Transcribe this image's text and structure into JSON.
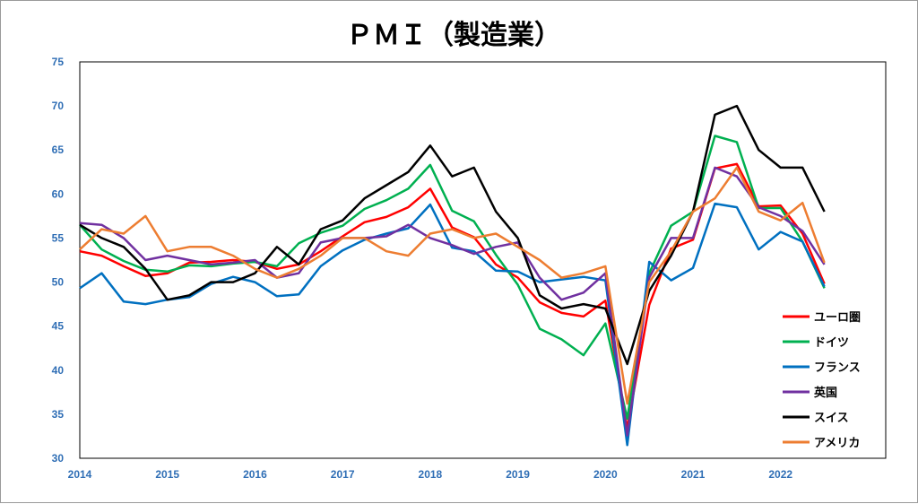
{
  "chart_data": {
    "type": "line",
    "title": "ＰＭＩ（製造業）",
    "xlabel": "",
    "ylabel": "",
    "ylim": [
      30,
      75
    ],
    "yticks": [
      30,
      35,
      40,
      45,
      50,
      55,
      60,
      65,
      70,
      75
    ],
    "xlim": [
      2014,
      2023.2
    ],
    "xticks": [
      "2014",
      "2015",
      "2016",
      "2017",
      "2018",
      "2019",
      "2020",
      "2021",
      "2022"
    ],
    "grid": false,
    "legend_position": "bottom-right",
    "series": [
      {
        "name": "ユーロ圏",
        "color": "#ff0000",
        "points": [
          [
            2014.0,
            53.5
          ],
          [
            2014.25,
            53.0
          ],
          [
            2014.5,
            51.8
          ],
          [
            2014.75,
            50.7
          ],
          [
            2015.0,
            51.0
          ],
          [
            2015.25,
            52.2
          ],
          [
            2015.5,
            52.3
          ],
          [
            2015.75,
            52.5
          ],
          [
            2016.0,
            52.3
          ],
          [
            2016.25,
            51.5
          ],
          [
            2016.5,
            52.0
          ],
          [
            2016.75,
            53.5
          ],
          [
            2017.0,
            55.2
          ],
          [
            2017.25,
            56.8
          ],
          [
            2017.5,
            57.4
          ],
          [
            2017.75,
            58.5
          ],
          [
            2018.0,
            60.6
          ],
          [
            2018.25,
            56.2
          ],
          [
            2018.5,
            55.1
          ],
          [
            2018.75,
            52.0
          ],
          [
            2019.0,
            50.5
          ],
          [
            2019.25,
            47.7
          ],
          [
            2019.5,
            46.5
          ],
          [
            2019.75,
            46.1
          ],
          [
            2020.0,
            47.9
          ],
          [
            2020.25,
            33.4
          ],
          [
            2020.5,
            47.4
          ],
          [
            2020.75,
            53.8
          ],
          [
            2021.0,
            54.8
          ],
          [
            2021.25,
            62.9
          ],
          [
            2021.5,
            63.4
          ],
          [
            2021.75,
            58.6
          ],
          [
            2022.0,
            58.7
          ],
          [
            2022.25,
            55.5
          ],
          [
            2022.5,
            49.8
          ]
        ]
      },
      {
        "name": "ドイツ",
        "color": "#00b050",
        "points": [
          [
            2014.0,
            56.5
          ],
          [
            2014.25,
            53.7
          ],
          [
            2014.5,
            52.4
          ],
          [
            2014.75,
            51.4
          ],
          [
            2015.0,
            51.2
          ],
          [
            2015.25,
            51.9
          ],
          [
            2015.5,
            51.8
          ],
          [
            2015.75,
            52.1
          ],
          [
            2016.0,
            52.3
          ],
          [
            2016.25,
            51.8
          ],
          [
            2016.5,
            54.4
          ],
          [
            2016.75,
            55.6
          ],
          [
            2017.0,
            56.4
          ],
          [
            2017.25,
            58.3
          ],
          [
            2017.5,
            59.3
          ],
          [
            2017.75,
            60.6
          ],
          [
            2018.0,
            63.3
          ],
          [
            2018.25,
            58.1
          ],
          [
            2018.5,
            56.9
          ],
          [
            2018.75,
            53.1
          ],
          [
            2019.0,
            49.7
          ],
          [
            2019.25,
            44.7
          ],
          [
            2019.5,
            43.5
          ],
          [
            2019.75,
            41.7
          ],
          [
            2020.0,
            45.3
          ],
          [
            2020.25,
            34.5
          ],
          [
            2020.5,
            51.0
          ],
          [
            2020.75,
            56.4
          ],
          [
            2021.0,
            58.0
          ],
          [
            2021.25,
            66.6
          ],
          [
            2021.5,
            65.9
          ],
          [
            2021.75,
            58.4
          ],
          [
            2022.0,
            58.4
          ],
          [
            2022.25,
            54.6
          ],
          [
            2022.5,
            49.3
          ]
        ]
      },
      {
        "name": "フランス",
        "color": "#0070c0",
        "points": [
          [
            2014.0,
            49.3
          ],
          [
            2014.25,
            51.0
          ],
          [
            2014.5,
            47.8
          ],
          [
            2014.75,
            47.5
          ],
          [
            2015.0,
            48.0
          ],
          [
            2015.25,
            48.3
          ],
          [
            2015.5,
            49.8
          ],
          [
            2015.75,
            50.6
          ],
          [
            2016.0,
            50.0
          ],
          [
            2016.25,
            48.4
          ],
          [
            2016.5,
            48.6
          ],
          [
            2016.75,
            51.8
          ],
          [
            2017.0,
            53.6
          ],
          [
            2017.25,
            54.8
          ],
          [
            2017.5,
            55.5
          ],
          [
            2017.75,
            56.1
          ],
          [
            2018.0,
            58.8
          ],
          [
            2018.25,
            53.9
          ],
          [
            2018.5,
            53.5
          ],
          [
            2018.75,
            51.3
          ],
          [
            2019.0,
            51.2
          ],
          [
            2019.25,
            50.0
          ],
          [
            2019.5,
            50.3
          ],
          [
            2019.75,
            50.6
          ],
          [
            2020.0,
            50.2
          ],
          [
            2020.25,
            31.5
          ],
          [
            2020.5,
            52.3
          ],
          [
            2020.75,
            50.2
          ],
          [
            2021.0,
            51.6
          ],
          [
            2021.25,
            58.9
          ],
          [
            2021.5,
            58.5
          ],
          [
            2021.75,
            53.7
          ],
          [
            2022.0,
            55.7
          ],
          [
            2022.25,
            54.6
          ],
          [
            2022.5,
            49.5
          ]
        ]
      },
      {
        "name": "英国",
        "color": "#7030a0",
        "points": [
          [
            2014.0,
            56.7
          ],
          [
            2014.25,
            56.5
          ],
          [
            2014.5,
            55.0
          ],
          [
            2014.75,
            52.5
          ],
          [
            2015.0,
            53.0
          ],
          [
            2015.25,
            52.5
          ],
          [
            2015.5,
            52.0
          ],
          [
            2015.75,
            52.2
          ],
          [
            2016.0,
            52.5
          ],
          [
            2016.25,
            50.5
          ],
          [
            2016.5,
            51.0
          ],
          [
            2016.75,
            54.5
          ],
          [
            2017.0,
            55.0
          ],
          [
            2017.25,
            55.0
          ],
          [
            2017.5,
            55.2
          ],
          [
            2017.75,
            56.5
          ],
          [
            2018.0,
            55.0
          ],
          [
            2018.25,
            54.2
          ],
          [
            2018.5,
            53.2
          ],
          [
            2018.75,
            54.0
          ],
          [
            2019.0,
            54.5
          ],
          [
            2019.25,
            50.5
          ],
          [
            2019.5,
            48.0
          ],
          [
            2019.75,
            48.8
          ],
          [
            2020.0,
            51.0
          ],
          [
            2020.25,
            32.6
          ],
          [
            2020.5,
            50.5
          ],
          [
            2020.75,
            55.0
          ],
          [
            2021.0,
            55.0
          ],
          [
            2021.25,
            63.0
          ],
          [
            2021.5,
            62.0
          ],
          [
            2021.75,
            58.5
          ],
          [
            2022.0,
            57.5
          ],
          [
            2022.25,
            55.8
          ],
          [
            2022.5,
            52.0
          ]
        ]
      },
      {
        "name": "スイス",
        "color": "#000000",
        "points": [
          [
            2014.0,
            56.5
          ],
          [
            2014.25,
            55.0
          ],
          [
            2014.5,
            54.0
          ],
          [
            2014.75,
            51.5
          ],
          [
            2015.0,
            48.0
          ],
          [
            2015.25,
            48.5
          ],
          [
            2015.5,
            50.0
          ],
          [
            2015.75,
            50.0
          ],
          [
            2016.0,
            51.0
          ],
          [
            2016.25,
            54.0
          ],
          [
            2016.5,
            52.0
          ],
          [
            2016.75,
            56.0
          ],
          [
            2017.0,
            57.0
          ],
          [
            2017.25,
            59.5
          ],
          [
            2017.5,
            61.0
          ],
          [
            2017.75,
            62.5
          ],
          [
            2018.0,
            65.5
          ],
          [
            2018.25,
            62.0
          ],
          [
            2018.5,
            63.0
          ],
          [
            2018.75,
            58.0
          ],
          [
            2019.0,
            55.0
          ],
          [
            2019.25,
            48.5
          ],
          [
            2019.5,
            47.0
          ],
          [
            2019.75,
            47.5
          ],
          [
            2020.0,
            47.0
          ],
          [
            2020.25,
            40.7
          ],
          [
            2020.5,
            49.0
          ],
          [
            2020.75,
            53.0
          ],
          [
            2021.0,
            58.0
          ],
          [
            2021.25,
            69.0
          ],
          [
            2021.5,
            70.0
          ],
          [
            2021.75,
            65.0
          ],
          [
            2022.0,
            63.0
          ],
          [
            2022.25,
            63.0
          ],
          [
            2022.5,
            58.0
          ]
        ]
      },
      {
        "name": "アメリカ",
        "color": "#ed7d31",
        "points": [
          [
            2014.0,
            53.7
          ],
          [
            2014.25,
            56.0
          ],
          [
            2014.5,
            55.5
          ],
          [
            2014.75,
            57.5
          ],
          [
            2015.0,
            53.5
          ],
          [
            2015.25,
            54.0
          ],
          [
            2015.5,
            54.0
          ],
          [
            2015.75,
            53.0
          ],
          [
            2016.0,
            51.5
          ],
          [
            2016.25,
            50.5
          ],
          [
            2016.5,
            51.5
          ],
          [
            2016.75,
            53.0
          ],
          [
            2017.0,
            55.0
          ],
          [
            2017.25,
            55.0
          ],
          [
            2017.5,
            53.5
          ],
          [
            2017.75,
            53.0
          ],
          [
            2018.0,
            55.5
          ],
          [
            2018.25,
            56.0
          ],
          [
            2018.5,
            55.0
          ],
          [
            2018.75,
            55.5
          ],
          [
            2019.0,
            54.0
          ],
          [
            2019.25,
            52.5
          ],
          [
            2019.5,
            50.5
          ],
          [
            2019.75,
            51.0
          ],
          [
            2020.0,
            51.8
          ],
          [
            2020.25,
            36.2
          ],
          [
            2020.5,
            50.0
          ],
          [
            2020.75,
            53.5
          ],
          [
            2021.0,
            58.0
          ],
          [
            2021.25,
            59.5
          ],
          [
            2021.5,
            63.0
          ],
          [
            2021.75,
            58.0
          ],
          [
            2022.0,
            57.0
          ],
          [
            2022.25,
            59.0
          ],
          [
            2022.5,
            52.2
          ]
        ]
      }
    ]
  }
}
